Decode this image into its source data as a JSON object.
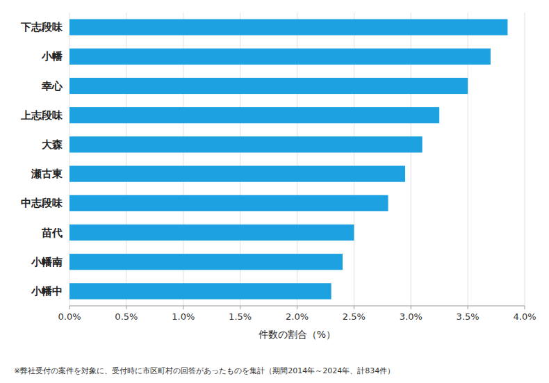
{
  "chart_data": {
    "type": "bar",
    "orientation": "horizontal",
    "categories": [
      "小幡中",
      "小幡南",
      "苗代",
      "中志段味",
      "瀬古東",
      "大森",
      "上志段味",
      "幸心",
      "小幡",
      "下志段味"
    ],
    "values": [
      2.3,
      2.4,
      2.5,
      2.8,
      2.95,
      3.1,
      3.25,
      3.5,
      3.7,
      3.85
    ],
    "color": "#1da1e0",
    "xlabel": "件数の割合（%）",
    "xlim": [
      0,
      4.0
    ],
    "xticks": [
      {
        "value": 0.0,
        "label": "0.0%"
      },
      {
        "value": 0.5,
        "label": "0.5%"
      },
      {
        "value": 1.0,
        "label": "1.0%"
      },
      {
        "value": 1.5,
        "label": "1.5%"
      },
      {
        "value": 2.0,
        "label": "2.0%"
      },
      {
        "value": 2.5,
        "label": "2.5%"
      },
      {
        "value": 3.0,
        "label": "3.0%"
      },
      {
        "value": 3.5,
        "label": "3.5%"
      },
      {
        "value": 4.0,
        "label": "4.0%"
      }
    ],
    "grid": true,
    "annotations": [
      "※弊社受付の案件を対象に、受付時に市区町村の回答があったものを集計（期間2014年～2024年、計834件）"
    ]
  }
}
